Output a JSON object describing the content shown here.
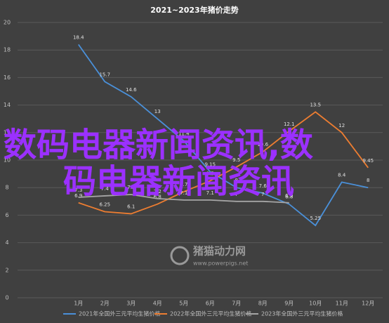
{
  "chart_data": {
    "type": "line",
    "title": "2021~2023年猪价走势",
    "categories": [
      "1月",
      "2月",
      "3月",
      "4月",
      "5月",
      "6月",
      "7月",
      "8月",
      "9月",
      "10月",
      "11月",
      "12月"
    ],
    "series": [
      {
        "name": "2021年全国外三元平均生猪价格",
        "color": "#4a90d9",
        "values": [
          18.4,
          15.7,
          14.6,
          13.0,
          11.4,
          9.15,
          8.0,
          7.6,
          6.8,
          5.25,
          8.4,
          8.0
        ]
      },
      {
        "name": "2022年全国外三元平均生猪价格",
        "color": "#ed7d31",
        "values": [
          6.9,
          6.25,
          6.1,
          6.8,
          7.7,
          8.5,
          9.5,
          10.6,
          12.1,
          13.5,
          12.0,
          9.45
        ]
      },
      {
        "name": "2023年全国外三元平均生猪价格",
        "color": "#a5a5a5",
        "values": [
          7.3,
          7.4,
          7.5,
          7.2,
          7.1,
          7.1,
          7.0,
          7.0,
          6.9,
          null,
          null,
          null
        ]
      }
    ],
    "ylim": [
      0,
      20
    ],
    "yticks": [
      0,
      2,
      4,
      6,
      8,
      10,
      12,
      14,
      16,
      18,
      20
    ],
    "grid": true,
    "legend": "bottom",
    "annotations": [
      "数码电器新闻资讯,数",
      "码电器新闻资讯",
      "猪猫动力网",
      "www.powerpigs.net"
    ]
  }
}
